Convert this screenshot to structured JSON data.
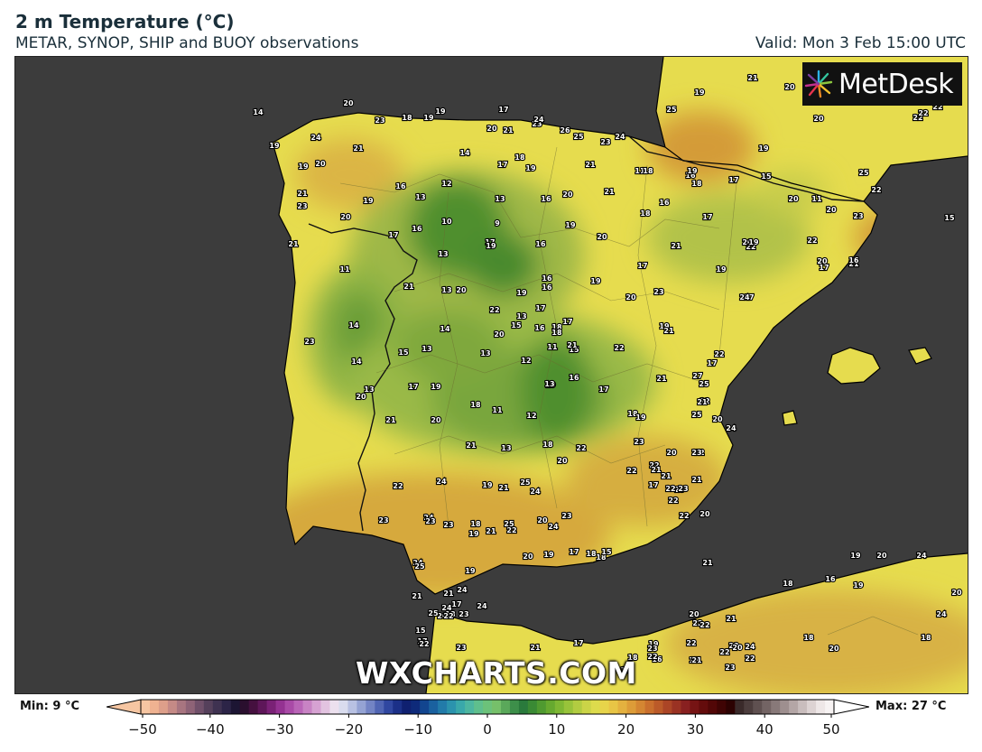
{
  "header": {
    "title": "2 m Temperature (°C)",
    "subtitle": "METAR, SYNOP, SHIP and BUOY observations",
    "valid": "Valid: Mon 3 Feb 15:00 UTC"
  },
  "logo": {
    "text": "MetDesk",
    "icon": "metdesk-starburst-icon"
  },
  "watermark": "WXCHARTS.COM",
  "colorbar": {
    "min_label": "Min: 9 °C",
    "max_label": "Max: 27 °C",
    "range": [
      -50,
      50
    ],
    "ticks": [
      "−50",
      "−40",
      "−30",
      "−20",
      "−10",
      "0",
      "10",
      "20",
      "30",
      "40",
      "50"
    ]
  },
  "stations": [
    {
      "v": "14"
    },
    {
      "v": "20"
    },
    {
      "v": "23"
    },
    {
      "v": "18"
    },
    {
      "v": "19"
    },
    {
      "v": "19"
    },
    {
      "v": "17"
    },
    {
      "v": "20"
    },
    {
      "v": "21"
    },
    {
      "v": "23"
    },
    {
      "v": "24"
    },
    {
      "v": "26"
    },
    {
      "v": "25"
    },
    {
      "v": "23"
    },
    {
      "v": "24"
    },
    {
      "v": "25"
    },
    {
      "v": "21"
    },
    {
      "v": "20"
    },
    {
      "v": "19"
    },
    {
      "v": "22"
    },
    {
      "v": "20"
    },
    {
      "v": "22"
    },
    {
      "v": "22"
    },
    {
      "v": "19"
    },
    {
      "v": "21"
    },
    {
      "v": "24"
    },
    {
      "v": "14"
    },
    {
      "v": "17"
    },
    {
      "v": "18"
    },
    {
      "v": "19"
    },
    {
      "v": "21"
    },
    {
      "v": "11"
    },
    {
      "v": "18"
    },
    {
      "v": "16"
    },
    {
      "v": "19"
    },
    {
      "v": "18"
    },
    {
      "v": "17"
    },
    {
      "v": "15"
    },
    {
      "v": "25"
    },
    {
      "v": "19"
    },
    {
      "v": "19"
    },
    {
      "v": "20"
    },
    {
      "v": "21"
    },
    {
      "v": "23"
    },
    {
      "v": "19"
    },
    {
      "v": "16"
    },
    {
      "v": "13"
    },
    {
      "v": "12"
    },
    {
      "v": "13"
    },
    {
      "v": "16"
    },
    {
      "v": "20"
    },
    {
      "v": "21"
    },
    {
      "v": "18"
    },
    {
      "v": "16"
    },
    {
      "v": "17"
    },
    {
      "v": "20"
    },
    {
      "v": "11"
    },
    {
      "v": "20"
    },
    {
      "v": "23"
    },
    {
      "v": "22"
    },
    {
      "v": "16"
    },
    {
      "v": "21"
    },
    {
      "v": "20"
    },
    {
      "v": "10"
    },
    {
      "v": "9"
    },
    {
      "v": "19"
    },
    {
      "v": "20"
    },
    {
      "v": "17"
    },
    {
      "v": "17"
    },
    {
      "v": "19"
    },
    {
      "v": "16"
    },
    {
      "v": "21"
    },
    {
      "v": "22"
    },
    {
      "v": "11"
    },
    {
      "v": "13"
    },
    {
      "v": "16"
    },
    {
      "v": "16"
    },
    {
      "v": "17"
    },
    {
      "v": "20"
    },
    {
      "v": "19"
    },
    {
      "v": "22"
    },
    {
      "v": "20"
    },
    {
      "v": "21"
    },
    {
      "v": "17"
    },
    {
      "v": "16"
    },
    {
      "v": "19"
    },
    {
      "v": "17"
    },
    {
      "v": "15"
    },
    {
      "v": "19"
    },
    {
      "v": "24"
    },
    {
      "v": "21"
    },
    {
      "v": "13"
    },
    {
      "v": "20"
    },
    {
      "v": "20"
    },
    {
      "v": "23"
    },
    {
      "v": "19"
    },
    {
      "v": "17"
    },
    {
      "v": "22"
    },
    {
      "v": "13"
    },
    {
      "v": "17"
    },
    {
      "v": "18"
    },
    {
      "v": "16"
    },
    {
      "v": "15"
    },
    {
      "v": "18"
    },
    {
      "v": "14"
    },
    {
      "v": "20"
    },
    {
      "v": "19"
    },
    {
      "v": "21"
    },
    {
      "v": "23"
    },
    {
      "v": "22"
    },
    {
      "v": "14"
    },
    {
      "v": "15"
    },
    {
      "v": "13"
    },
    {
      "v": "13"
    },
    {
      "v": "12"
    },
    {
      "v": "11"
    },
    {
      "v": "15"
    },
    {
      "v": "22"
    },
    {
      "v": "21"
    },
    {
      "v": "14"
    },
    {
      "v": "13"
    },
    {
      "v": "20"
    },
    {
      "v": "17"
    },
    {
      "v": "19"
    },
    {
      "v": "19"
    },
    {
      "v": "13"
    },
    {
      "v": "16"
    },
    {
      "v": "17"
    },
    {
      "v": "21"
    },
    {
      "v": "27"
    },
    {
      "v": "25"
    },
    {
      "v": "22"
    },
    {
      "v": "21"
    },
    {
      "v": "17"
    },
    {
      "v": "18"
    },
    {
      "v": "11"
    },
    {
      "v": "12"
    },
    {
      "v": "18"
    },
    {
      "v": "19"
    },
    {
      "v": "25"
    },
    {
      "v": "20"
    },
    {
      "v": "24"
    },
    {
      "v": "21"
    },
    {
      "v": "20"
    },
    {
      "v": "21"
    },
    {
      "v": "13"
    },
    {
      "v": "18"
    },
    {
      "v": "20"
    },
    {
      "v": "22"
    },
    {
      "v": "23"
    },
    {
      "v": "22"
    },
    {
      "v": "20"
    },
    {
      "v": "22"
    },
    {
      "v": "23"
    },
    {
      "v": "21"
    },
    {
      "v": "21"
    },
    {
      "v": "22"
    },
    {
      "v": "22"
    },
    {
      "v": "24"
    },
    {
      "v": "21"
    },
    {
      "v": "25"
    },
    {
      "v": "24"
    },
    {
      "v": "19"
    },
    {
      "v": "17"
    },
    {
      "v": "23"
    },
    {
      "v": "22"
    },
    {
      "v": "21"
    },
    {
      "v": "23"
    },
    {
      "v": "22"
    },
    {
      "v": "20"
    },
    {
      "v": "22"
    },
    {
      "v": "23"
    },
    {
      "v": "24"
    },
    {
      "v": "23"
    },
    {
      "v": "23"
    },
    {
      "v": "18"
    },
    {
      "v": "19"
    },
    {
      "v": "21"
    },
    {
      "v": "20"
    },
    {
      "v": "24"
    },
    {
      "v": "23"
    },
    {
      "v": "22"
    },
    {
      "v": "25"
    },
    {
      "v": "20"
    },
    {
      "v": "19"
    },
    {
      "v": "17"
    },
    {
      "v": "18"
    },
    {
      "v": "18"
    },
    {
      "v": "15"
    },
    {
      "v": "21"
    },
    {
      "v": "19"
    },
    {
      "v": "20"
    },
    {
      "v": "24"
    },
    {
      "v": "18"
    },
    {
      "v": "16"
    },
    {
      "v": "19"
    },
    {
      "v": "20"
    },
    {
      "v": "24"
    },
    {
      "v": "20"
    },
    {
      "v": "23"
    },
    {
      "v": "15"
    },
    {
      "v": "18"
    },
    {
      "v": "17"
    },
    {
      "v": "24"
    },
    {
      "v": "25"
    },
    {
      "v": "19"
    },
    {
      "v": "24"
    },
    {
      "v": "17"
    },
    {
      "v": "21"
    },
    {
      "v": "25"
    },
    {
      "v": "22"
    },
    {
      "v": "24"
    },
    {
      "v": "24"
    },
    {
      "v": "21"
    },
    {
      "v": "22"
    },
    {
      "v": "23"
    },
    {
      "v": "21"
    },
    {
      "v": "17"
    },
    {
      "v": "20"
    },
    {
      "v": "22"
    },
    {
      "v": "22"
    },
    {
      "v": "22"
    },
    {
      "v": "22"
    },
    {
      "v": "24"
    },
    {
      "v": "21"
    },
    {
      "v": "18"
    },
    {
      "v": "20"
    },
    {
      "v": "18"
    },
    {
      "v": "19"
    },
    {
      "v": "23"
    },
    {
      "v": "18"
    },
    {
      "v": "19"
    },
    {
      "v": "16"
    },
    {
      "v": "15"
    },
    {
      "v": "21"
    },
    {
      "v": "22"
    },
    {
      "v": "23"
    },
    {
      "v": "20"
    },
    {
      "v": "23"
    },
    {
      "v": "22"
    }
  ]
}
